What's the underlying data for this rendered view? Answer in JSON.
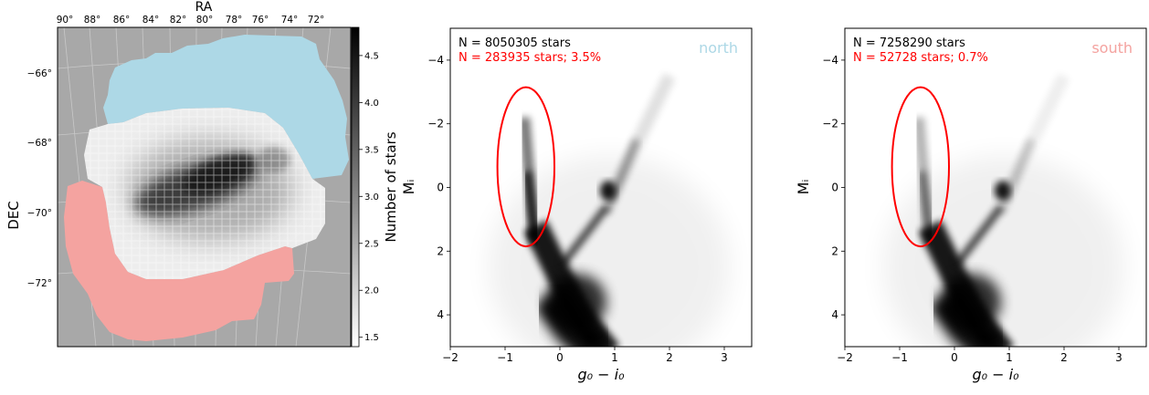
{
  "chart_data": [
    {
      "type": "heatmap",
      "title": "RA",
      "xlabel": "RA",
      "ylabel": "DEC",
      "x_ticks": [
        "90°",
        "88°",
        "86°",
        "84°",
        "82°",
        "80°",
        "78°",
        "76°",
        "74°",
        "72°"
      ],
      "y_ticks": [
        "−66°",
        "−68°",
        "−70°",
        "−72°"
      ],
      "colorbar": {
        "label": "Number of stars",
        "range": [
          1.4,
          4.8
        ],
        "ticks": [
          "1.5",
          "2.0",
          "2.5",
          "3.0",
          "3.5",
          "4.0",
          "4.5"
        ],
        "colormap": "gray_r"
      },
      "regions": [
        {
          "key": "north",
          "color": "#add8e6"
        },
        {
          "key": "south",
          "color": "#f4a3a0"
        }
      ],
      "background_color": "#a8a8a8"
    },
    {
      "type": "scatter",
      "xlabel": "g₀ − i₀",
      "ylabel": "Mᵢ",
      "xlim": [
        -2,
        3.5
      ],
      "ylim": [
        5,
        -5
      ],
      "x_ticks": [
        "−2",
        "−1",
        "0",
        "1",
        "2",
        "3"
      ],
      "y_ticks": [
        "−4",
        "−2",
        "0",
        "2",
        "4"
      ],
      "stats": {
        "total_text": "N = 8050305 stars",
        "selected_text": "N = 283935 stars; 3.5%",
        "total": 8050305,
        "selected": 283935,
        "percent": 3.5
      },
      "region_label": "north",
      "region_color": "#add8e6",
      "ellipse": {
        "cx": -0.62,
        "cy": -0.65,
        "rx": 0.52,
        "ry": 2.5,
        "color": "#ff0000"
      },
      "density_scale": 1.0
    },
    {
      "type": "scatter",
      "xlabel": "g₀ − i₀",
      "ylabel": "Mᵢ",
      "xlim": [
        -2,
        3.5
      ],
      "ylim": [
        5,
        -5
      ],
      "x_ticks": [
        "−2",
        "−1",
        "0",
        "1",
        "2",
        "3"
      ],
      "y_ticks": [
        "−4",
        "−2",
        "0",
        "2",
        "4"
      ],
      "stats": {
        "total_text": "N = 7258290 stars",
        "selected_text": "N = 52728 stars; 0.7%",
        "total": 7258290,
        "selected": 52728,
        "percent": 0.7
      },
      "region_label": "south",
      "region_color": "#f4a3a0",
      "ellipse": {
        "cx": -0.62,
        "cy": -0.65,
        "rx": 0.52,
        "ry": 2.5,
        "color": "#ff0000"
      },
      "density_scale": 0.55
    }
  ]
}
